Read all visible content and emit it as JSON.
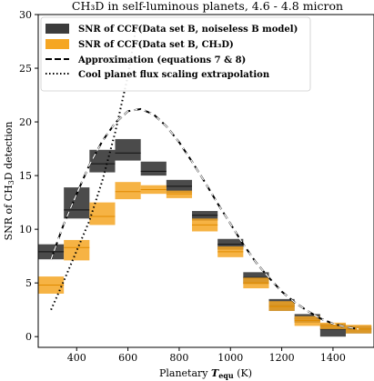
{
  "chart_data": {
    "type": "bar",
    "title": "CH₃D in self-luminous planets, 4.6 - 4.8 micron",
    "xlabel_prefix": "Planetary ",
    "xlabel_var": "T",
    "xlabel_sub": "equ",
    "xlabel_unit": " (K)",
    "ylabel_pre": "SNR of CH",
    "ylabel_sub": "3",
    "ylabel_post": "D detection",
    "xlim": [
      250,
      1560
    ],
    "ylim": [
      -1,
      30
    ],
    "xticks": [
      400,
      600,
      800,
      1000,
      1200,
      1400
    ],
    "yticks": [
      0,
      5,
      10,
      15,
      20,
      25,
      30
    ],
    "grid": false,
    "legend_position": "top-left",
    "bin_width": 100,
    "series": [
      {
        "name": "SNR of CCF(Data set B, noiseless B model)",
        "color": "#3c3c3c",
        "bins": [
          {
            "x": 300,
            "low": 7.2,
            "mid": 7.9,
            "high": 8.6
          },
          {
            "x": 400,
            "low": 11.0,
            "mid": 11.8,
            "high": 13.9
          },
          {
            "x": 500,
            "low": 15.3,
            "mid": 16.1,
            "high": 17.4
          },
          {
            "x": 600,
            "low": 16.4,
            "mid": 17.1,
            "high": 18.4
          },
          {
            "x": 700,
            "low": 15.0,
            "mid": 15.4,
            "high": 16.3
          },
          {
            "x": 800,
            "low": 13.4,
            "mid": 14.0,
            "high": 14.6
          },
          {
            "x": 900,
            "low": 10.8,
            "mid": 11.3,
            "high": 11.7
          },
          {
            "x": 1000,
            "low": 8.1,
            "mid": 8.6,
            "high": 9.1
          },
          {
            "x": 1100,
            "low": 4.9,
            "mid": 5.5,
            "high": 6.0
          },
          {
            "x": 1200,
            "low": 2.4,
            "mid": 2.9,
            "high": 3.5
          },
          {
            "x": 1300,
            "low": 1.3,
            "mid": 1.7,
            "high": 2.1
          },
          {
            "x": 1400,
            "low": 0.0,
            "mid": 0.7,
            "high": 1.2
          },
          {
            "x": 1500,
            "low": 0.3,
            "mid": 0.7,
            "high": 1.0
          }
        ]
      },
      {
        "name": "SNR of CCF(Data set B, CH₃D)",
        "color": "#f5a623",
        "bins": [
          {
            "x": 300,
            "low": 4.0,
            "mid": 4.8,
            "high": 5.6
          },
          {
            "x": 400,
            "low": 7.1,
            "mid": 8.3,
            "high": 9.0
          },
          {
            "x": 500,
            "low": 10.4,
            "mid": 11.2,
            "high": 12.5
          },
          {
            "x": 600,
            "low": 12.8,
            "mid": 13.5,
            "high": 14.4
          },
          {
            "x": 700,
            "low": 13.3,
            "mid": 13.7,
            "high": 14.1
          },
          {
            "x": 800,
            "low": 12.9,
            "mid": 13.3,
            "high": 13.6
          },
          {
            "x": 900,
            "low": 9.8,
            "mid": 10.4,
            "high": 11.0
          },
          {
            "x": 1000,
            "low": 7.4,
            "mid": 7.9,
            "high": 8.4
          },
          {
            "x": 1100,
            "low": 4.5,
            "mid": 5.0,
            "high": 5.5
          },
          {
            "x": 1200,
            "low": 2.4,
            "mid": 2.8,
            "high": 3.3
          },
          {
            "x": 1300,
            "low": 1.0,
            "mid": 1.5,
            "high": 1.9
          },
          {
            "x": 1400,
            "low": 0.7,
            "mid": 1.0,
            "high": 1.3
          },
          {
            "x": 1500,
            "low": 0.3,
            "mid": 0.7,
            "high": 1.1
          }
        ]
      }
    ],
    "lines": [
      {
        "name": "Approximation (equations 7 & 8)",
        "style": "dashed",
        "color": "#000000",
        "x": [
          300,
          350,
          400,
          450,
          500,
          550,
          600,
          650,
          700,
          750,
          800,
          850,
          900,
          950,
          1000,
          1050,
          1100,
          1150,
          1200,
          1250,
          1300,
          1350,
          1400,
          1450,
          1500
        ],
        "y": [
          7.2,
          10.5,
          13.3,
          16.0,
          18.2,
          19.9,
          21.0,
          21.2,
          20.7,
          19.6,
          18.1,
          16.3,
          14.4,
          12.4,
          10.5,
          8.6,
          6.9,
          5.5,
          4.2,
          3.2,
          2.4,
          1.7,
          1.2,
          0.9,
          0.7
        ]
      },
      {
        "name": "Cool planet flux scaling extrapolation",
        "style": "dotted",
        "color": "#000000",
        "x": [
          300,
          350,
          400,
          450,
          500,
          550,
          600,
          630
        ],
        "y": [
          2.5,
          5.2,
          8.0,
          10.8,
          14.5,
          19.0,
          24.3,
          28.5
        ]
      }
    ],
    "approximation_inset": {
      "style": "dashed-white",
      "x": [
        300,
        350,
        400,
        450,
        500,
        550,
        600,
        650,
        700,
        750,
        800,
        850,
        900,
        950,
        1000,
        1050,
        1100,
        1150,
        1200,
        1250,
        1300,
        1350,
        1400,
        1450,
        1500
      ],
      "y": [
        7.2,
        10.5,
        13.3,
        16.0,
        18.2,
        19.9,
        21.0,
        21.2,
        20.7,
        19.6,
        18.1,
        16.3,
        14.4,
        12.4,
        10.5,
        8.6,
        6.9,
        5.5,
        4.2,
        3.2,
        2.4,
        1.7,
        1.2,
        0.9,
        0.7
      ]
    }
  }
}
